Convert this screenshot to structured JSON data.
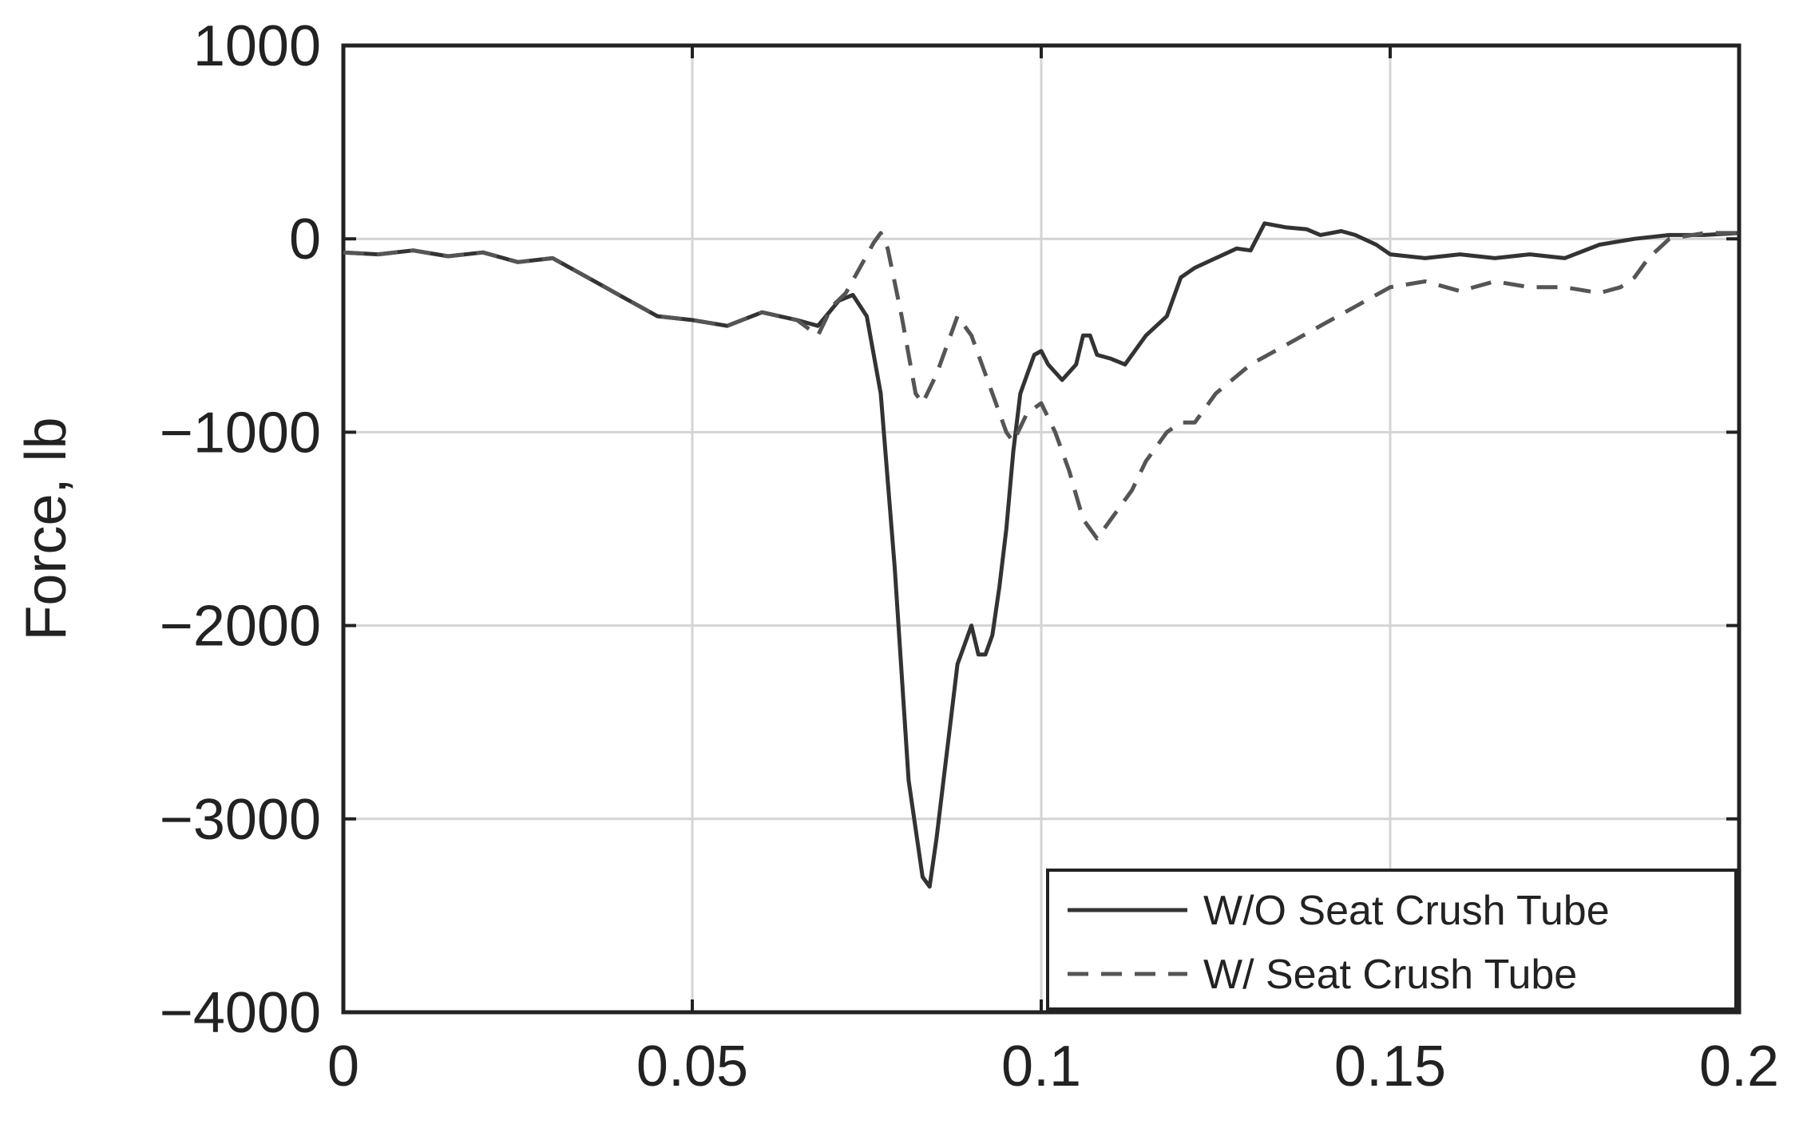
{
  "chart_data": {
    "type": "line",
    "title": "",
    "xlabel": "",
    "ylabel": "Force, lb",
    "xlim": [
      0,
      0.2
    ],
    "ylim": [
      -4000,
      1000
    ],
    "x_ticks": [
      0,
      0.05,
      0.1,
      0.15,
      0.2
    ],
    "x_tick_labels": [
      "0",
      "0.05",
      "0.1",
      "0.15",
      "0.2"
    ],
    "y_ticks": [
      1000,
      0,
      -1000,
      -2000,
      -3000,
      -4000
    ],
    "y_tick_labels": [
      "1000",
      "0",
      "−1000",
      "−2000",
      "−3000",
      "−4000"
    ],
    "grid": true,
    "legend_position": "bottom-right",
    "series": [
      {
        "name": "W/O Seat Crush Tube",
        "style": "solid",
        "color": "#333333",
        "x": [
          0,
          0.005,
          0.01,
          0.015,
          0.02,
          0.025,
          0.03,
          0.035,
          0.04,
          0.045,
          0.05,
          0.055,
          0.06,
          0.065,
          0.068,
          0.071,
          0.073,
          0.075,
          0.077,
          0.079,
          0.081,
          0.083,
          0.084,
          0.085,
          0.086,
          0.087,
          0.088,
          0.089,
          0.09,
          0.091,
          0.092,
          0.093,
          0.094,
          0.095,
          0.096,
          0.097,
          0.098,
          0.099,
          0.1,
          0.101,
          0.103,
          0.105,
          0.106,
          0.107,
          0.108,
          0.11,
          0.112,
          0.115,
          0.118,
          0.12,
          0.122,
          0.125,
          0.128,
          0.13,
          0.132,
          0.135,
          0.138,
          0.14,
          0.143,
          0.145,
          0.148,
          0.15,
          0.155,
          0.16,
          0.165,
          0.17,
          0.175,
          0.18,
          0.185,
          0.19,
          0.195,
          0.2
        ],
        "y": [
          -70,
          -80,
          -60,
          -90,
          -70,
          -120,
          -100,
          -200,
          -300,
          -400,
          -420,
          -450,
          -380,
          -420,
          -450,
          -320,
          -290,
          -400,
          -800,
          -1700,
          -2800,
          -3300,
          -3350,
          -3100,
          -2800,
          -2500,
          -2200,
          -2100,
          -2000,
          -2150,
          -2150,
          -2050,
          -1800,
          -1500,
          -1100,
          -800,
          -700,
          -600,
          -580,
          -650,
          -730,
          -650,
          -500,
          -500,
          -600,
          -620,
          -650,
          -500,
          -400,
          -200,
          -150,
          -100,
          -50,
          -60,
          80,
          60,
          50,
          20,
          40,
          20,
          -30,
          -80,
          -100,
          -80,
          -100,
          -80,
          -100,
          -30,
          0,
          20,
          20,
          30
        ]
      },
      {
        "name": "W/ Seat Crush Tube",
        "style": "dashed",
        "color": "#555555",
        "x": [
          0,
          0.005,
          0.01,
          0.015,
          0.02,
          0.025,
          0.03,
          0.035,
          0.04,
          0.045,
          0.05,
          0.055,
          0.06,
          0.065,
          0.068,
          0.07,
          0.072,
          0.074,
          0.076,
          0.077,
          0.078,
          0.08,
          0.082,
          0.083,
          0.085,
          0.087,
          0.088,
          0.089,
          0.09,
          0.092,
          0.094,
          0.095,
          0.096,
          0.098,
          0.1,
          0.102,
          0.104,
          0.106,
          0.107,
          0.108,
          0.11,
          0.113,
          0.115,
          0.118,
          0.12,
          0.122,
          0.125,
          0.13,
          0.135,
          0.14,
          0.145,
          0.15,
          0.155,
          0.16,
          0.165,
          0.17,
          0.175,
          0.18,
          0.183,
          0.185,
          0.187,
          0.19,
          0.195,
          0.2
        ],
        "y": [
          -70,
          -80,
          -60,
          -90,
          -70,
          -120,
          -100,
          -200,
          -300,
          -400,
          -420,
          -450,
          -380,
          -420,
          -500,
          -350,
          -280,
          -150,
          -20,
          30,
          -50,
          -400,
          -800,
          -850,
          -700,
          -500,
          -400,
          -450,
          -500,
          -700,
          -900,
          -1000,
          -1050,
          -900,
          -850,
          -1000,
          -1200,
          -1450,
          -1500,
          -1550,
          -1450,
          -1300,
          -1150,
          -1000,
          -950,
          -950,
          -800,
          -650,
          -550,
          -450,
          -350,
          -250,
          -220,
          -270,
          -220,
          -250,
          -250,
          -280,
          -250,
          -200,
          -100,
          0,
          30,
          30
        ]
      }
    ]
  }
}
